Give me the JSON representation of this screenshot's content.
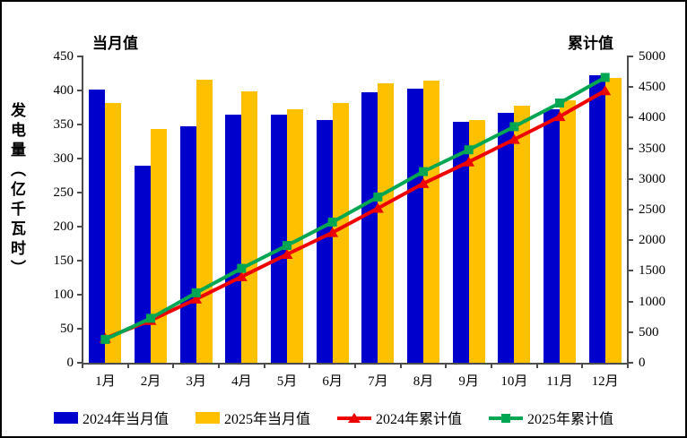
{
  "chart_data": {
    "type": "combo-bar-line",
    "categories": [
      "1月",
      "2月",
      "3月",
      "4月",
      "5月",
      "6月",
      "7月",
      "8月",
      "9月",
      "10月",
      "11月",
      "12月"
    ],
    "bar_series": [
      {
        "name": "2024年当月值",
        "color": "#0000CC",
        "axis": "left",
        "values": [
          401,
          290,
          348,
          365,
          365,
          356,
          397,
          403,
          354,
          367,
          373,
          422
        ]
      },
      {
        "name": "2025年当月值",
        "color": "#FFC000",
        "axis": "left",
        "values": [
          382,
          344,
          416,
          399,
          373,
          382,
          410,
          414,
          356,
          378,
          385,
          418
        ]
      }
    ],
    "line_series": [
      {
        "name": "2024年累计值",
        "color": "#EE0000",
        "marker": "triangle",
        "axis": "right",
        "values": [
          401,
          691,
          1039,
          1404,
          1769,
          2125,
          2522,
          2925,
          3279,
          3646,
          4019,
          4441
        ]
      },
      {
        "name": "2025年累计值",
        "color": "#00A651",
        "marker": "square",
        "axis": "right",
        "values": [
          382,
          726,
          1142,
          1541,
          1914,
          2296,
          2706,
          3120,
          3476,
          3854,
          4239,
          4657
        ]
      }
    ],
    "left_axis": {
      "header": "当月值",
      "title": "发电量（亿千瓦时）",
      "min": 0,
      "max": 450,
      "step": 50,
      "tick_labels": [
        "0",
        "50",
        "100",
        "150",
        "200",
        "250",
        "300",
        "350",
        "400",
        "450"
      ]
    },
    "right_axis": {
      "header": "累计值",
      "min": 0,
      "max": 5000,
      "step": 500,
      "tick_labels": [
        "0",
        "500",
        "1000",
        "1500",
        "2000",
        "2500",
        "3000",
        "3500",
        "4000",
        "4500",
        "5000"
      ]
    },
    "grid": false,
    "legend_position": "bottom"
  }
}
